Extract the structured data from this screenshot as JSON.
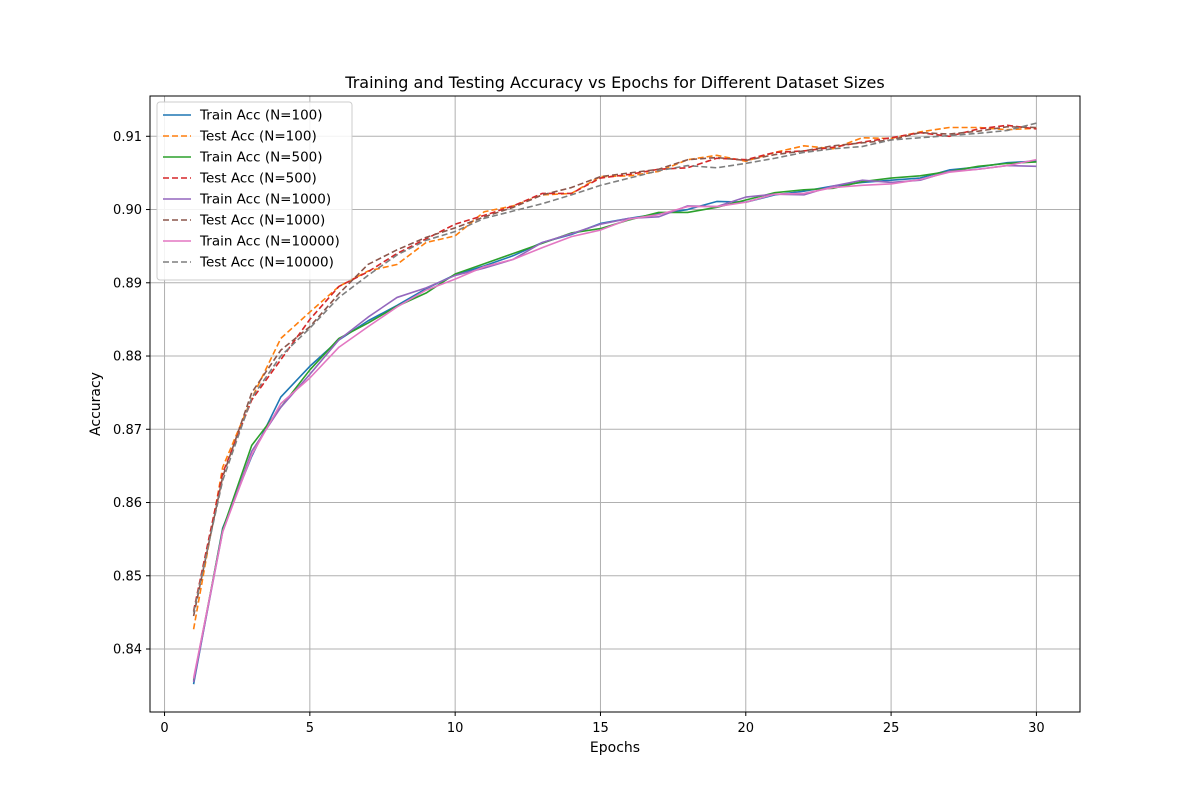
{
  "chart_data": {
    "type": "line",
    "title": "Training and Testing Accuracy vs Epochs for Different Dataset Sizes",
    "xlabel": "Epochs",
    "ylabel": "Accuracy",
    "xlim": [
      -0.5,
      31.5
    ],
    "ylim": [
      0.8314,
      0.9155
    ],
    "xticks": [
      0,
      5,
      10,
      15,
      20,
      25,
      30
    ],
    "yticks": [
      0.84,
      0.85,
      0.86,
      0.87,
      0.88,
      0.89,
      0.9,
      0.91
    ],
    "xtick_labels": [
      "0",
      "5",
      "10",
      "15",
      "20",
      "25",
      "30"
    ],
    "ytick_labels": [
      "0.84",
      "0.85",
      "0.86",
      "0.87",
      "0.88",
      "0.89",
      "0.90",
      "0.91"
    ],
    "grid": true,
    "legend_position": "upper-left",
    "x": [
      1,
      2,
      3,
      4,
      5,
      6,
      7,
      8,
      9,
      10,
      11,
      12,
      13,
      14,
      15,
      16,
      17,
      18,
      19,
      20,
      21,
      22,
      23,
      24,
      25,
      26,
      27,
      28,
      29,
      30
    ],
    "series": [
      {
        "name": "Train Acc (N=100)",
        "style": "solid",
        "color": "#1f77b4",
        "values": [
          0.8352,
          0.8565,
          0.8663,
          0.8744,
          0.8786,
          0.8822,
          0.8848,
          0.8869,
          0.8892,
          0.8911,
          0.8923,
          0.8937,
          0.8955,
          0.8966,
          0.8981,
          0.8988,
          0.8994,
          0.9,
          0.9011,
          0.901,
          0.902,
          0.9025,
          0.9032,
          0.9037,
          0.904,
          0.9043,
          0.9054,
          0.9058,
          0.9064,
          0.9066
        ]
      },
      {
        "name": "Test Acc (N=100)",
        "style": "dashed",
        "color": "#ff7f0e",
        "values": [
          0.8427,
          0.8648,
          0.8742,
          0.8824,
          0.886,
          0.8895,
          0.8916,
          0.8925,
          0.8955,
          0.8964,
          0.8997,
          0.9005,
          0.902,
          0.9022,
          0.9045,
          0.9046,
          0.9052,
          0.9068,
          0.9074,
          0.9066,
          0.9078,
          0.9087,
          0.9083,
          0.9098,
          0.9097,
          0.9106,
          0.9112,
          0.9112,
          0.9109,
          0.9111
        ]
      },
      {
        "name": "Train Acc (N=500)",
        "style": "solid",
        "color": "#2ca02c",
        "values": [
          0.8357,
          0.8563,
          0.8678,
          0.873,
          0.8781,
          0.8824,
          0.8845,
          0.8868,
          0.8886,
          0.8912,
          0.8926,
          0.894,
          0.8954,
          0.8968,
          0.8974,
          0.8986,
          0.8996,
          0.8996,
          0.9003,
          0.9013,
          0.9023,
          0.9027,
          0.9029,
          0.9038,
          0.9043,
          0.9046,
          0.9052,
          0.9059,
          0.9063,
          0.9065
        ]
      },
      {
        "name": "Test Acc (N=500)",
        "style": "dashed",
        "color": "#d62728",
        "values": [
          0.8452,
          0.864,
          0.874,
          0.8795,
          0.885,
          0.8895,
          0.8915,
          0.894,
          0.896,
          0.898,
          0.8992,
          0.9005,
          0.9022,
          0.9022,
          0.9043,
          0.9048,
          0.9055,
          0.9057,
          0.907,
          0.9068,
          0.9078,
          0.908,
          0.9085,
          0.9092,
          0.9098,
          0.9105,
          0.91,
          0.911,
          0.9115,
          0.911
        ]
      },
      {
        "name": "Train Acc (N=1000)",
        "style": "solid",
        "color": "#9467bd",
        "values": [
          0.8355,
          0.856,
          0.867,
          0.873,
          0.8775,
          0.8822,
          0.8853,
          0.888,
          0.8893,
          0.891,
          0.892,
          0.8932,
          0.8955,
          0.8967,
          0.898,
          0.8988,
          0.899,
          0.9005,
          0.9004,
          0.9017,
          0.9021,
          0.902,
          0.9032,
          0.904,
          0.9037,
          0.904,
          0.9052,
          0.9055,
          0.906,
          0.9059
        ]
      },
      {
        "name": "Test Acc (N=1000)",
        "style": "dashed",
        "color": "#8c564b",
        "values": [
          0.8445,
          0.8635,
          0.875,
          0.8808,
          0.884,
          0.8885,
          0.8925,
          0.8945,
          0.8962,
          0.8975,
          0.899,
          0.9003,
          0.902,
          0.903,
          0.9045,
          0.905,
          0.9055,
          0.9068,
          0.9071,
          0.9067,
          0.9075,
          0.908,
          0.9087,
          0.9091,
          0.9095,
          0.9105,
          0.9103,
          0.9107,
          0.9113,
          0.9112
        ]
      },
      {
        "name": "Train Acc (N=10000)",
        "style": "solid",
        "color": "#e377c2",
        "values": [
          0.836,
          0.856,
          0.8665,
          0.8735,
          0.877,
          0.8812,
          0.884,
          0.8867,
          0.889,
          0.8905,
          0.8922,
          0.8932,
          0.8948,
          0.8963,
          0.8972,
          0.8987,
          0.8993,
          0.9004,
          0.9004,
          0.901,
          0.9021,
          0.9022,
          0.903,
          0.9033,
          0.9035,
          0.9041,
          0.9051,
          0.9055,
          0.906,
          0.9068
        ]
      },
      {
        "name": "Test Acc (N=10000)",
        "style": "dashed",
        "color": "#7f7f7f",
        "values": [
          0.845,
          0.863,
          0.8743,
          0.88,
          0.8838,
          0.888,
          0.891,
          0.8938,
          0.8958,
          0.897,
          0.8988,
          0.8998,
          0.9008,
          0.902,
          0.9033,
          0.9043,
          0.9053,
          0.906,
          0.9057,
          0.9063,
          0.907,
          0.9078,
          0.9083,
          0.9086,
          0.9095,
          0.9098,
          0.9101,
          0.9104,
          0.9108,
          0.9118
        ]
      }
    ]
  }
}
